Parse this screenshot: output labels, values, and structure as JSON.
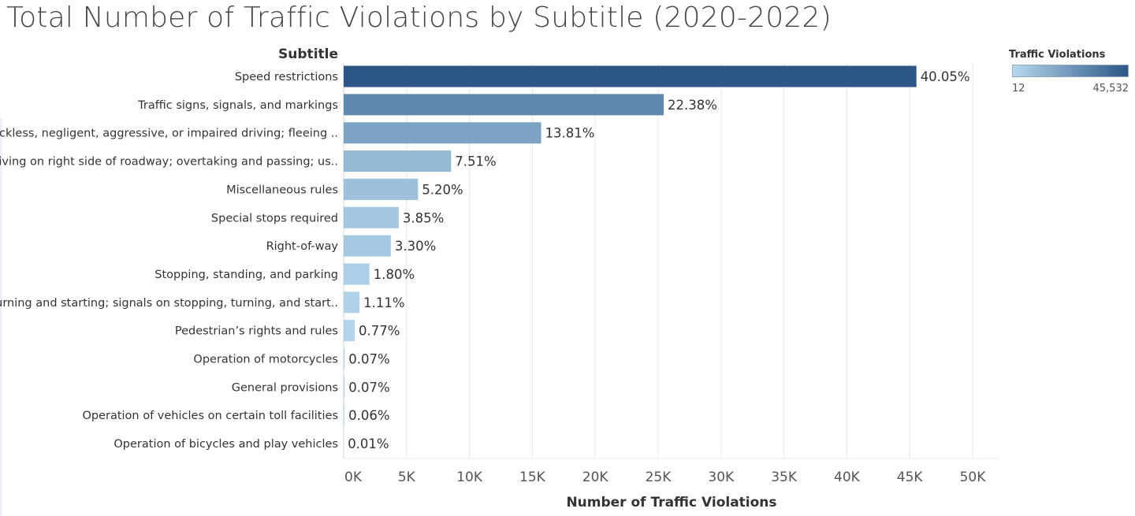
{
  "title": "Total Number of Traffic Violations by Subtitle (2020-2022)",
  "colors": {
    "bar_light": "#b5d8ee",
    "bar_dark": "#2b5685",
    "grid": "#e8e8e8",
    "text": "#333333"
  },
  "legend": {
    "title": "Traffic Violations",
    "min_label": "12",
    "max_label": "45,532"
  },
  "chart_data": {
    "type": "bar",
    "orientation": "horizontal",
    "row_header": "Subtitle",
    "xlabel": "Number of Traffic Violations",
    "xlim": [
      0,
      52000
    ],
    "xticks": [
      0,
      5000,
      10000,
      15000,
      20000,
      25000,
      30000,
      35000,
      40000,
      45000,
      50000
    ],
    "xtick_labels": [
      "0K",
      "5K",
      "10K",
      "15K",
      "20K",
      "25K",
      "30K",
      "35K",
      "40K",
      "45K",
      "50K"
    ],
    "grid": true,
    "categories": [
      "Speed restrictions",
      "Traffic signs, signals, and markings",
      "Reckless, negligent, aggressive, or impaired driving; fleeing ..",
      "Driving on right side of roadway; overtaking and passing; us..",
      "Miscellaneous rules",
      "Special stops required",
      "Right-of-way",
      "Stopping, standing, and parking",
      "Turning and starting; signals on stopping, turning, and start..",
      "Pedestrian’s rights and rules",
      "Operation of motorcycles",
      "General provisions",
      "Operation of vehicles on certain toll facilities",
      "Operation of bicycles and play vehicles"
    ],
    "values": [
      45532,
      25440,
      15700,
      8540,
      5910,
      4380,
      3750,
      2050,
      1260,
      880,
      80,
      80,
      68,
      12
    ],
    "labels": [
      "40.05%",
      "22.38%",
      "13.81%",
      "7.51%",
      "5.20%",
      "3.85%",
      "3.30%",
      "1.80%",
      "1.11%",
      "0.77%",
      "0.07%",
      "0.07%",
      "0.06%",
      "0.01%"
    ]
  }
}
